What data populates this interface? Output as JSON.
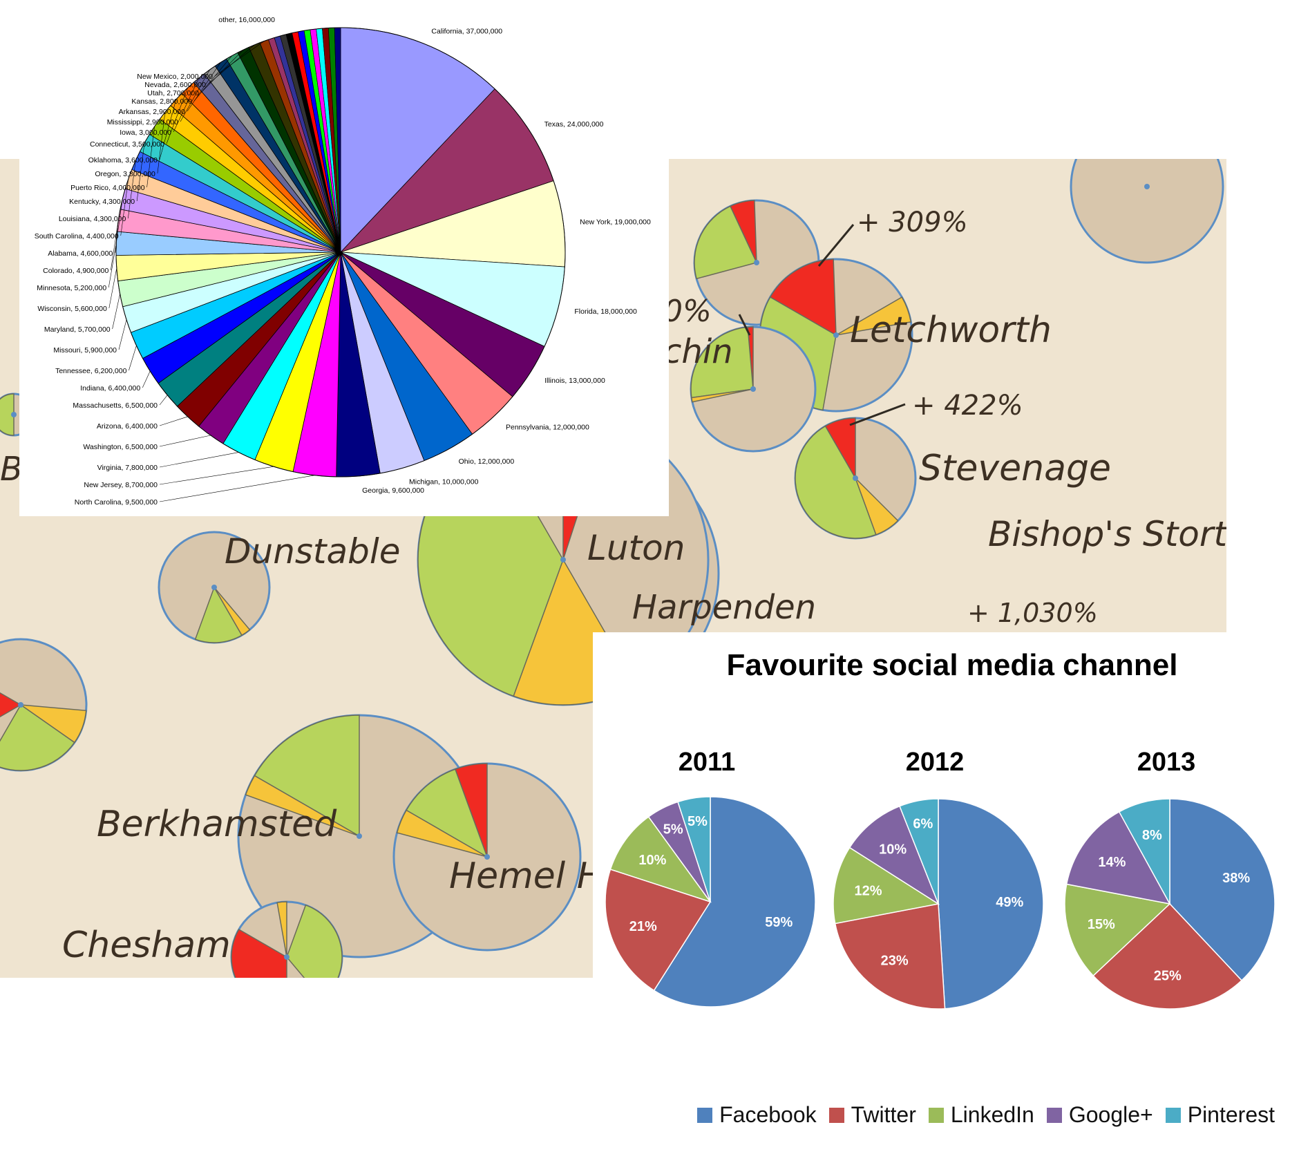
{
  "background_map": {
    "labels": [
      "Letchworth",
      "Stevenage",
      "Bishop's Stort",
      "Dunstable",
      "Luton",
      "Harpenden",
      "Berkhamsted",
      "Hemel Hempst",
      "Chesham",
      "chin",
      "Br"
    ],
    "annotations": [
      "+ 309%",
      "+ 422%",
      "+ 1,030%",
      "0%"
    ],
    "colors": {
      "paper": "#efe4d0",
      "circle": "#d8c6ac",
      "outline": "#5b8ec4",
      "green": "#b7d45c",
      "red": "#f02a22",
      "yellow": "#f6c43a"
    }
  },
  "chart_data": [
    {
      "type": "pie",
      "title": "",
      "categories": [
        "California",
        "Texas",
        "New York",
        "Florida",
        "Illinois",
        "Pennsylvania",
        "Ohio",
        "Michigan",
        "Georgia",
        "North Carolina",
        "New Jersey",
        "Virginia",
        "Washington",
        "Arizona",
        "Massachusetts",
        "Indiana",
        "Tennessee",
        "Missouri",
        "Maryland",
        "Wisconsin",
        "Minnesota",
        "Colorado",
        "Alabama",
        "South Carolina",
        "Louisiana",
        "Kentucky",
        "Puerto Rico",
        "Oregon",
        "Oklahoma",
        "Connecticut",
        "Iowa",
        "Mississippi",
        "Arkansas",
        "Kansas",
        "Utah",
        "Nevada",
        "New Mexico",
        "other"
      ],
      "values": [
        37000000,
        24000000,
        19000000,
        18000000,
        13000000,
        12000000,
        12000000,
        10000000,
        9600000,
        9500000,
        8700000,
        7800000,
        6500000,
        6400000,
        6500000,
        6400000,
        6200000,
        5900000,
        5700000,
        5600000,
        5200000,
        4900000,
        4600000,
        4400000,
        4300000,
        4300000,
        4000000,
        3800000,
        3600000,
        3500000,
        3000000,
        2900000,
        2900000,
        2800000,
        2700000,
        2600000,
        2000000,
        16000000
      ],
      "labels": [
        "California, 37,000,000",
        "Texas, 24,000,000",
        "New York, 19,000,000",
        "Florida, 18,000,000",
        "Illinois, 13,000,000",
        "Pennsylvania, 12,000,000",
        "Ohio, 12,000,000",
        "Michigan, 10,000,000",
        "Georgia, 9,600,000",
        "North Carolina, 9,500,000",
        "New Jersey, 8,700,000",
        "Virginia, 7,800,000",
        "Washington, 6,500,000",
        "Arizona, 6,400,000",
        "Massachusetts, 6,500,000",
        "Indiana, 6,400,000",
        "Tennessee, 6,200,000",
        "Missouri, 5,900,000",
        "Maryland, 5,700,000",
        "Wisconsin, 5,600,000",
        "Minnesota, 5,200,000",
        "Colorado, 4,900,000",
        "Alabama, 4,600,000",
        "South Carolina, 4,400,000",
        "Louisiana, 4,300,000",
        "Kentucky, 4,300,000",
        "Puerto Rico, 4,000,000",
        "Oregon, 3,800,000",
        "Oklahoma, 3,600,000",
        "Connecticut, 3,500,000",
        "Iowa, 3,000,000",
        "Mississippi, 2,900,000",
        "Arkansas, 2,900,000",
        "Kansas, 2,800,000",
        "Utah, 2,700,000",
        "Nevada, 2,600,000",
        "New Mexico, 2,000,000",
        "other, 16,000,000"
      ],
      "colors": [
        "#9999ff",
        "#993366",
        "#ffffcc",
        "#ccffff",
        "#660066",
        "#ff8080",
        "#0066cc",
        "#ccccff",
        "#000080",
        "#ff00ff",
        "#ffff00",
        "#00ffff",
        "#800080",
        "#800000",
        "#008080",
        "#0000ff",
        "#00ccff",
        "#ccffff",
        "#ccffcc",
        "#ffff99",
        "#99ccff",
        "#ff99cc",
        "#cc99ff",
        "#ffcc99",
        "#3366ff",
        "#33cccc",
        "#99cc00",
        "#ffcc00",
        "#ff9900",
        "#ff6600",
        "#666699",
        "#969696",
        "#003366",
        "#339966",
        "#003300",
        "#333300",
        "#993300",
        "#ffffff"
      ],
      "other_slices_colors": [
        "#993366",
        "#333399",
        "#333333",
        "#000000",
        "#ff0000",
        "#0000ff",
        "#00ff00",
        "#ff00ff",
        "#00ffff",
        "#800000",
        "#008000",
        "#000080"
      ],
      "legend": "none"
    },
    {
      "type": "pie",
      "title": "Favourite social media channel",
      "categories": [
        "Facebook",
        "Twitter",
        "LinkedIn",
        "Google+",
        "Pinterest"
      ],
      "colors": [
        "#4f81bd",
        "#c0504d",
        "#9bbb59",
        "#8064a2",
        "#4bacc6"
      ],
      "series": [
        {
          "name": "2011",
          "values": [
            59,
            21,
            10,
            5,
            5
          ],
          "labels": [
            "59%",
            "21%",
            "10%",
            "5%",
            "5%"
          ]
        },
        {
          "name": "2012",
          "values": [
            49,
            23,
            12,
            10,
            6
          ],
          "labels": [
            "49%",
            "23%",
            "12%",
            "10%",
            "6%"
          ]
        },
        {
          "name": "2013",
          "values": [
            38,
            25,
            15,
            14,
            8
          ],
          "labels": [
            "38%",
            "25%",
            "15%",
            "14%",
            "8%"
          ]
        }
      ],
      "legend": "bottom-right"
    }
  ]
}
